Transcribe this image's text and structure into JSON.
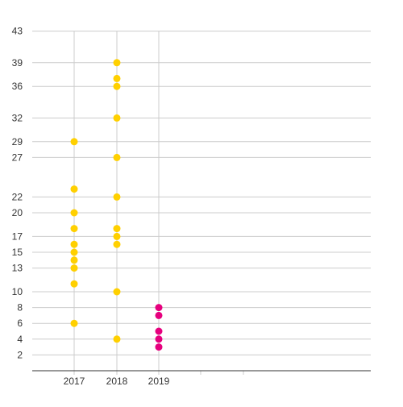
{
  "chart_data": {
    "type": "scatter",
    "title": "",
    "xlabel": "",
    "ylabel": "",
    "categories": [
      "2017",
      "2018",
      "2019"
    ],
    "y_ticks": [
      2,
      4,
      6,
      8,
      10,
      13,
      15,
      17,
      20,
      22,
      27,
      29,
      32,
      36,
      39,
      43
    ],
    "ylim": [
      0,
      43
    ],
    "grid": true,
    "legend": "none",
    "series": [
      {
        "color": "#FFD000",
        "points": [
          {
            "x": "2017",
            "y": 6
          },
          {
            "x": "2017",
            "y": 11
          },
          {
            "x": "2017",
            "y": 13
          },
          {
            "x": "2017",
            "y": 14
          },
          {
            "x": "2017",
            "y": 15
          },
          {
            "x": "2017",
            "y": 16
          },
          {
            "x": "2017",
            "y": 18
          },
          {
            "x": "2017",
            "y": 20
          },
          {
            "x": "2017",
            "y": 23
          },
          {
            "x": "2017",
            "y": 29
          },
          {
            "x": "2018",
            "y": 4
          },
          {
            "x": "2018",
            "y": 10
          },
          {
            "x": "2018",
            "y": 16
          },
          {
            "x": "2018",
            "y": 17
          },
          {
            "x": "2018",
            "y": 18
          },
          {
            "x": "2018",
            "y": 22
          },
          {
            "x": "2018",
            "y": 27
          },
          {
            "x": "2018",
            "y": 32
          },
          {
            "x": "2018",
            "y": 36
          },
          {
            "x": "2018",
            "y": 37
          },
          {
            "x": "2018",
            "y": 39
          }
        ]
      },
      {
        "color": "#E6007E",
        "points": [
          {
            "x": "2019",
            "y": 3
          },
          {
            "x": "2019",
            "y": 4
          },
          {
            "x": "2019",
            "y": 5
          },
          {
            "x": "2019",
            "y": 7
          },
          {
            "x": "2019",
            "y": 8
          }
        ]
      }
    ]
  }
}
